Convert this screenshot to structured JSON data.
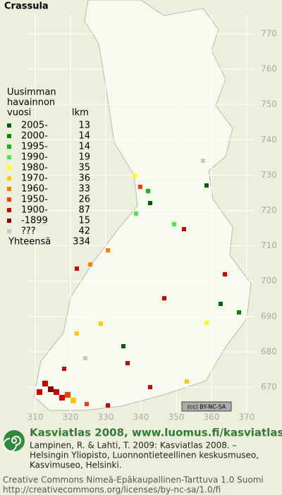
{
  "title": "Crassula",
  "legend": {
    "heading": [
      "Uusimman",
      "havainnon",
      "vuosi"
    ],
    "count_header": "lkm",
    "entries": [
      {
        "label": "2005-",
        "count": 13,
        "color": "#006400"
      },
      {
        "label": "2000-",
        "count": 14,
        "color": "#008c00"
      },
      {
        "label": "1995-",
        "count": 14,
        "color": "#00c800"
      },
      {
        "label": "1990-",
        "count": 19,
        "color": "#40f040"
      },
      {
        "label": "1980-",
        "count": 35,
        "color": "#ffff00"
      },
      {
        "label": "1970-",
        "count": 36,
        "color": "#ffc800"
      },
      {
        "label": "1960-",
        "count": 33,
        "color": "#ff8000"
      },
      {
        "label": "1950-",
        "count": 26,
        "color": "#ff3c00"
      },
      {
        "label": "1900-",
        "count": 87,
        "color": "#d20000"
      },
      {
        "label": "-1899",
        "count": 15,
        "color": "#8c0000"
      },
      {
        "label": "???",
        "count": 42,
        "color": "#c8c8c8"
      }
    ],
    "total": {
      "label": "Yhteensä",
      "count": 334
    }
  },
  "grid": {
    "y_labels": [
      "770",
      "760",
      "750",
      "740",
      "730",
      "720",
      "710",
      "700",
      "690",
      "680",
      "670"
    ],
    "x_labels": [
      "310",
      "320",
      "330",
      "340",
      "350",
      "360",
      "370"
    ]
  },
  "badge": "(cc) BY-NC-SA",
  "footer": {
    "headline": "Kasviatlas 2008, www.luomus.fi/kasviatlas",
    "citation": [
      "Lampinen, R. & Lahti, T. 2009: Kasviatlas 2008. –",
      "Helsingin Yliopisto, Luonnontieteellinen keskusmuseo,",
      "Kasvimuseo, Helsinki."
    ],
    "license": [
      "Creative Commons Nimeä-Epäkaupallinen-Tarttuva 1.0 Suomi",
      "http://creativecommons.org/licenses/by-nc-sa/1.0/fi"
    ]
  }
}
